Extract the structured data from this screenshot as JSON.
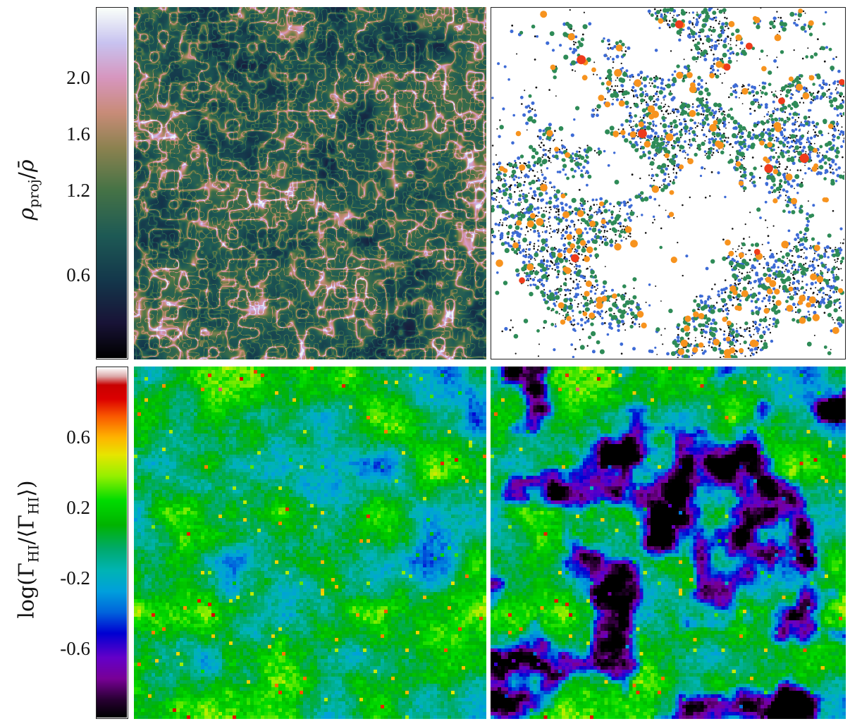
{
  "chart_data": [
    {
      "type": "heatmap",
      "title": "",
      "colorbar": {
        "label_parts": {
          "main": "ρ",
          "sub": "proj",
          "bar": "ρ̄"
        },
        "ticks": [
          "0.6",
          "1.2",
          "1.6",
          "2.0"
        ],
        "tick_values": [
          0.6,
          1.2,
          1.6,
          2.0
        ],
        "range": [
          0.0,
          2.5
        ],
        "colormap": "cubehelix-like (black → teal → green → tan → pink → white)"
      },
      "panels": [
        {
          "name": "projected density field",
          "kind": "heatmap",
          "grid": "off"
        },
        {
          "name": "halo positions",
          "kind": "scatter",
          "marker_colors": [
            "#111111",
            "#3d6bd6",
            "#2e8b57",
            "#f7931e",
            "#ee3b1b"
          ]
        }
      ]
    },
    {
      "type": "heatmap",
      "title": "",
      "colorbar": {
        "label_parts": {
          "prefix": "log(Γ",
          "sub1": "HI",
          "mid": "/⟨Γ",
          "sub2": "HI",
          "suffix": "⟩)"
        },
        "ticks": [
          "-0.6",
          "-0.2",
          "0.2",
          "0.6"
        ],
        "tick_values": [
          -0.6,
          -0.2,
          0.2,
          0.6
        ],
        "range": [
          -1.0,
          1.0
        ],
        "colormap": "nipy_spectral"
      },
      "panels": [
        {
          "name": "photoionization rate field (left)",
          "kind": "heatmap"
        },
        {
          "name": "photoionization rate field (right)",
          "kind": "heatmap"
        }
      ]
    }
  ]
}
